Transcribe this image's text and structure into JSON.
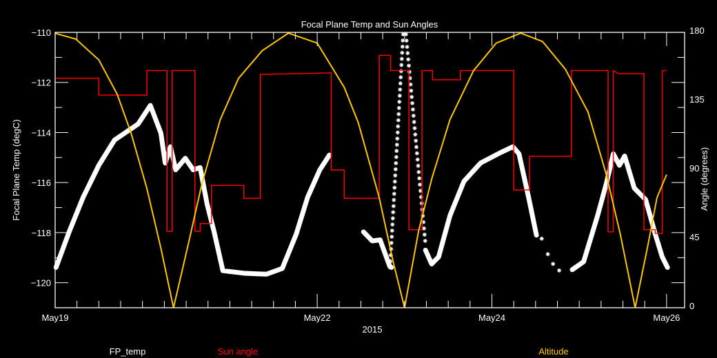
{
  "chart_data": {
    "type": "line",
    "title": "Focal Plane Temp and Sun Angles",
    "xlabel": "2015",
    "ylabel": "Focal Plane Temp (degC)",
    "y2label": "Angle (degrees)",
    "x_unit": "days since May19 00:00",
    "xlim": [
      0,
      7.2
    ],
    "ylim": [
      -121,
      -110
    ],
    "y2lim": [
      0,
      180
    ],
    "x_tick_labels": [
      {
        "day": 0,
        "label": "May19"
      },
      {
        "day": 3,
        "label": "May22"
      },
      {
        "day": 5,
        "label": "May24"
      },
      {
        "day": 7,
        "label": "May26"
      }
    ],
    "y_ticks": [
      {
        "value": -110,
        "label": "−110"
      },
      {
        "value": -112,
        "label": "−112"
      },
      {
        "value": -114,
        "label": "−114"
      },
      {
        "value": -116,
        "label": "−116"
      },
      {
        "value": -118,
        "label": "−118"
      },
      {
        "value": -120,
        "label": "−120"
      }
    ],
    "y2_ticks": [
      {
        "value": 0,
        "label": "0"
      },
      {
        "value": 45,
        "label": "45"
      },
      {
        "value": 90,
        "label": "90"
      },
      {
        "value": 135,
        "label": "135"
      },
      {
        "value": 180,
        "label": "180"
      }
    ],
    "grid": false,
    "legend": [
      {
        "name": "FP_temp",
        "color": "#ffffff"
      },
      {
        "name": "Sun angle",
        "color": "#ff0000"
      },
      {
        "name": "Altitude",
        "color": "#ffc800"
      }
    ],
    "series": [
      {
        "name": "FP_temp",
        "axis": "left",
        "color": "#ffffff",
        "segments": [
          [
            [
              0.01,
              -119.39
            ],
            [
              0.16,
              -117.97
            ],
            [
              0.32,
              -116.59
            ],
            [
              0.5,
              -115.31
            ],
            [
              0.68,
              -114.3
            ],
            [
              0.95,
              -113.66
            ],
            [
              1.09,
              -112.92
            ],
            [
              1.21,
              -114.02
            ],
            [
              1.26,
              -115.22
            ],
            [
              1.32,
              -114.57
            ],
            [
              1.38,
              -115.49
            ],
            [
              1.49,
              -115.03
            ],
            [
              1.58,
              -115.49
            ],
            [
              1.66,
              -115.4
            ],
            [
              1.74,
              -116.87
            ],
            [
              1.82,
              -117.97
            ],
            [
              1.92,
              -119.52
            ],
            [
              2.16,
              -119.62
            ],
            [
              2.42,
              -119.66
            ],
            [
              2.6,
              -119.43
            ],
            [
              2.76,
              -118.06
            ],
            [
              2.89,
              -116.59
            ],
            [
              3.03,
              -115.49
            ],
            [
              3.14,
              -114.9
            ]
          ],
          [
            [
              3.53,
              -117.97
            ],
            [
              3.63,
              -118.33
            ],
            [
              3.72,
              -118.29
            ],
            [
              3.83,
              -119.34
            ],
            [
              3.85,
              -119.39
            ]
          ],
          [
            [
              4.24,
              -118.7
            ],
            [
              4.31,
              -119.25
            ],
            [
              4.39,
              -118.97
            ],
            [
              4.52,
              -117.32
            ],
            [
              4.68,
              -115.95
            ],
            [
              4.87,
              -115.22
            ],
            [
              5.1,
              -114.8
            ],
            [
              5.24,
              -114.57
            ],
            [
              5.31,
              -114.85
            ],
            [
              5.42,
              -116.59
            ],
            [
              5.51,
              -118.1
            ]
          ],
          [
            [
              5.92,
              -119.48
            ],
            [
              6.05,
              -119.16
            ],
            [
              6.21,
              -117.32
            ],
            [
              6.31,
              -116.04
            ],
            [
              6.39,
              -114.85
            ],
            [
              6.46,
              -115.31
            ],
            [
              6.52,
              -114.94
            ],
            [
              6.63,
              -116.22
            ],
            [
              6.76,
              -116.68
            ],
            [
              6.87,
              -118.06
            ],
            [
              6.95,
              -118.97
            ],
            [
              7.01,
              -119.39
            ]
          ]
        ],
        "sparse_points": [
          [
            3.85,
            -119.39
          ],
          [
            4.0,
            -110.08
          ],
          [
            4.22,
            -118.33
          ],
          [
            5.57,
            -118.24
          ],
          [
            5.64,
            -118.86
          ],
          [
            5.7,
            -119.25
          ],
          [
            5.77,
            -119.51
          ]
        ]
      },
      {
        "name": "Sun angle",
        "axis": "right",
        "color": "#ff0000",
        "points": [
          [
            0,
            150
          ],
          [
            0.5,
            150
          ],
          [
            0.5,
            139
          ],
          [
            1.05,
            139
          ],
          [
            1.05,
            155
          ],
          [
            1.28,
            155
          ],
          [
            1.28,
            50
          ],
          [
            1.34,
            50
          ],
          [
            1.34,
            155
          ],
          [
            1.6,
            155
          ],
          [
            1.6,
            50
          ],
          [
            1.66,
            50
          ],
          [
            1.66,
            55
          ],
          [
            1.79,
            55
          ],
          [
            1.79,
            80
          ],
          [
            2.16,
            80
          ],
          [
            2.16,
            71.5
          ],
          [
            2.35,
            71.5
          ],
          [
            2.35,
            152.5
          ],
          [
            3.16,
            153.5
          ],
          [
            3.16,
            90
          ],
          [
            3.31,
            90
          ],
          [
            3.31,
            71.5
          ],
          [
            3.71,
            71.5
          ],
          [
            3.71,
            165
          ],
          [
            3.84,
            165
          ],
          [
            3.84,
            155
          ],
          [
            4.05,
            155
          ],
          [
            4.05,
            51
          ],
          [
            4.2,
            51
          ],
          [
            4.2,
            155
          ],
          [
            4.32,
            155
          ],
          [
            4.32,
            149
          ],
          [
            4.64,
            149
          ],
          [
            4.64,
            155
          ],
          [
            5.25,
            155
          ],
          [
            5.25,
            77
          ],
          [
            5.43,
            77
          ],
          [
            5.43,
            99
          ],
          [
            5.91,
            99
          ],
          [
            5.91,
            155
          ],
          [
            6.33,
            155
          ],
          [
            6.33,
            49.6
          ],
          [
            6.39,
            49.6
          ],
          [
            6.39,
            155
          ],
          [
            6.45,
            153
          ],
          [
            6.74,
            153
          ],
          [
            6.74,
            51
          ],
          [
            6.87,
            51
          ],
          [
            6.87,
            48.6
          ],
          [
            6.95,
            48.6
          ],
          [
            6.95,
            155
          ],
          [
            7.0,
            155
          ]
        ]
      },
      {
        "name": "Altitude",
        "axis": "right",
        "color": "#ffc800",
        "points": [
          [
            0,
            179.4
          ],
          [
            0.237,
            175.6
          ],
          [
            0.5,
            162
          ],
          [
            0.71,
            139.6
          ],
          [
            0.87,
            114
          ],
          [
            1.05,
            78
          ],
          [
            1.21,
            39
          ],
          [
            1.355,
            0
          ],
          [
            1.526,
            42
          ],
          [
            1.68,
            81
          ],
          [
            1.89,
            123
          ],
          [
            2.1,
            150
          ],
          [
            2.37,
            168
          ],
          [
            2.67,
            179.5
          ],
          [
            3.0,
            173
          ],
          [
            3.31,
            144
          ],
          [
            3.47,
            121
          ],
          [
            3.71,
            72
          ],
          [
            3.87,
            30
          ],
          [
            4.0,
            0
          ],
          [
            4.16,
            50
          ],
          [
            4.31,
            84
          ],
          [
            4.52,
            123
          ],
          [
            4.79,
            155
          ],
          [
            5.05,
            173
          ],
          [
            5.33,
            179.5
          ],
          [
            5.58,
            174
          ],
          [
            5.84,
            156
          ],
          [
            6.1,
            128
          ],
          [
            6.31,
            87
          ],
          [
            6.47,
            48
          ],
          [
            6.64,
            0
          ],
          [
            6.79,
            42
          ],
          [
            6.89,
            72
          ],
          [
            7.0,
            87
          ]
        ]
      }
    ]
  }
}
